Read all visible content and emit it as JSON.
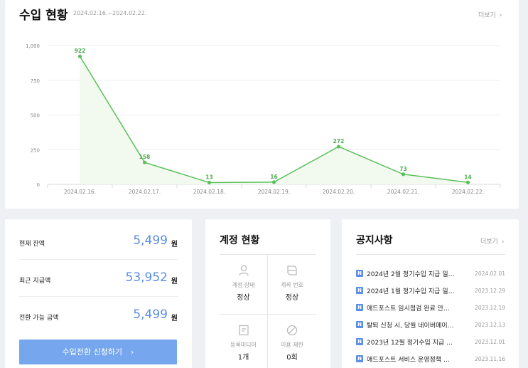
{
  "revenue": {
    "title": "수입 현황",
    "date_range": "2024.02.16.~2024.02.22.",
    "more_label": "더보기",
    "more_icon": "chevron-right-icon"
  },
  "chart_data": {
    "type": "area",
    "categories": [
      "2024.02.16.",
      "2024.02.17.",
      "2024.02.18.",
      "2024.02.19.",
      "2024.02.20.",
      "2024.02.21.",
      "2024.02.22."
    ],
    "series": [
      {
        "values": [
          922,
          158,
          13,
          16,
          272,
          73,
          14
        ]
      }
    ],
    "data_labels": [
      "922",
      "158",
      "13",
      "16",
      "272",
      "73",
      "14"
    ],
    "yticks": [
      "1,000",
      "750",
      "500",
      "250",
      "0"
    ],
    "ylim": [
      0,
      1000
    ],
    "grid": true,
    "line_color": "#5ac15a",
    "fill_color": "#f2faf0"
  },
  "balance": {
    "rows": [
      {
        "label": "현재 잔액",
        "value": "5,499",
        "unit": "원"
      },
      {
        "label": "최근 지급액",
        "value": "53,952",
        "unit": "원"
      },
      {
        "label": "전환 가능 금액",
        "value": "5,499",
        "unit": "원"
      }
    ],
    "button_label": "수입전환 신청하기",
    "button_icon": "chevron-right-icon",
    "accent_color": "#5b8ee6"
  },
  "account": {
    "title": "계정 현황",
    "cells": [
      {
        "icon": "person-icon",
        "label": "계정 상태",
        "value": "정상"
      },
      {
        "icon": "bank-card-icon",
        "label": "계좌 번호",
        "value": "정상"
      },
      {
        "icon": "document-icon",
        "label": "등록미디어",
        "value": "1개"
      },
      {
        "icon": "block-icon",
        "label": "이용 제한",
        "value": "0회"
      }
    ]
  },
  "notice": {
    "title": "공지사항",
    "more_label": "더보기",
    "badge": "N",
    "items": [
      {
        "title": "2024년 2월 정기수입 지급 일…",
        "date": "2024.02.01"
      },
      {
        "title": "2024년 1월 정기수입 지급 일…",
        "date": "2023.12.29"
      },
      {
        "title": "애드포스트 임시점검 완료 안…",
        "date": "2023.12.19"
      },
      {
        "title": "탈퇴 신청 시, 당월 네이버페이…",
        "date": "2023.12.13"
      },
      {
        "title": "2023년 12월 정기수입 지급 …",
        "date": "2023.12.01"
      },
      {
        "title": "애드포스트 서비스 운영정책 …",
        "date": "2023.11.16"
      }
    ]
  }
}
